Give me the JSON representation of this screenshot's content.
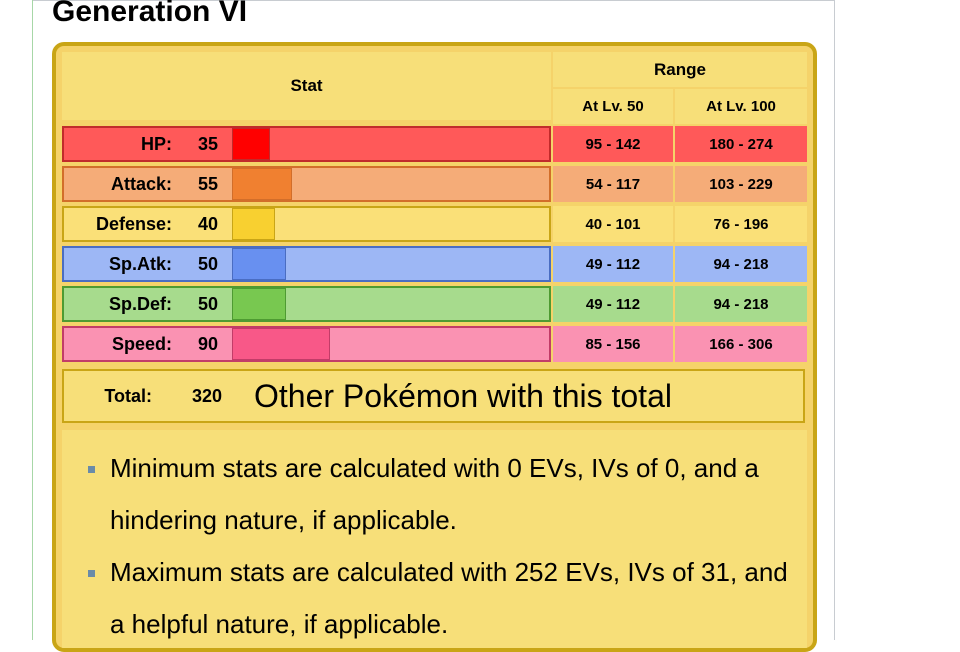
{
  "heading": "Generation VI",
  "table": {
    "stat_header": "Stat",
    "range_header": "Range",
    "lv50_header": "At Lv. 50",
    "lv100_header": "At Lv. 100"
  },
  "stats": [
    {
      "name": "HP:",
      "value": 35,
      "range50": "95 - 142",
      "range100": "180 - 274",
      "bar_color": "#ff0000",
      "row_color": "#ff5959",
      "border_color": "#c12b2b"
    },
    {
      "name": "Attack:",
      "value": 55,
      "range50": "54 - 117",
      "range100": "103 - 229",
      "bar_color": "#f08030",
      "row_color": "#f5ac78",
      "border_color": "#d26e2a"
    },
    {
      "name": "Defense:",
      "value": 40,
      "range50": "40 - 101",
      "range100": "76 - 196",
      "bar_color": "#f8d030",
      "row_color": "#fae078",
      "border_color": "#c9a516"
    },
    {
      "name": "Sp.Atk:",
      "value": 50,
      "range50": "49 - 112",
      "range100": "94 - 218",
      "bar_color": "#6890f0",
      "row_color": "#9db7f5",
      "border_color": "#4a6dc2"
    },
    {
      "name": "Sp.Def:",
      "value": 50,
      "range50": "49 - 112",
      "range100": "94 - 218",
      "bar_color": "#78c850",
      "row_color": "#a7db8d",
      "border_color": "#4e9b32"
    },
    {
      "name": "Speed:",
      "value": 90,
      "range50": "85 - 156",
      "range100": "166 - 306",
      "bar_color": "#f85888",
      "row_color": "#fa92b2",
      "border_color": "#c23c68"
    }
  ],
  "total": {
    "label": "Total:",
    "value": "320",
    "link": "Other Pokémon with this total"
  },
  "notes": [
    "Minimum stats are calculated with 0 EVs, IVs of 0, and a hindering nature, if applicable.",
    "Maximum stats are calculated with 252 EVs, IVs of 31, and a helpful nature, if applicable."
  ]
}
